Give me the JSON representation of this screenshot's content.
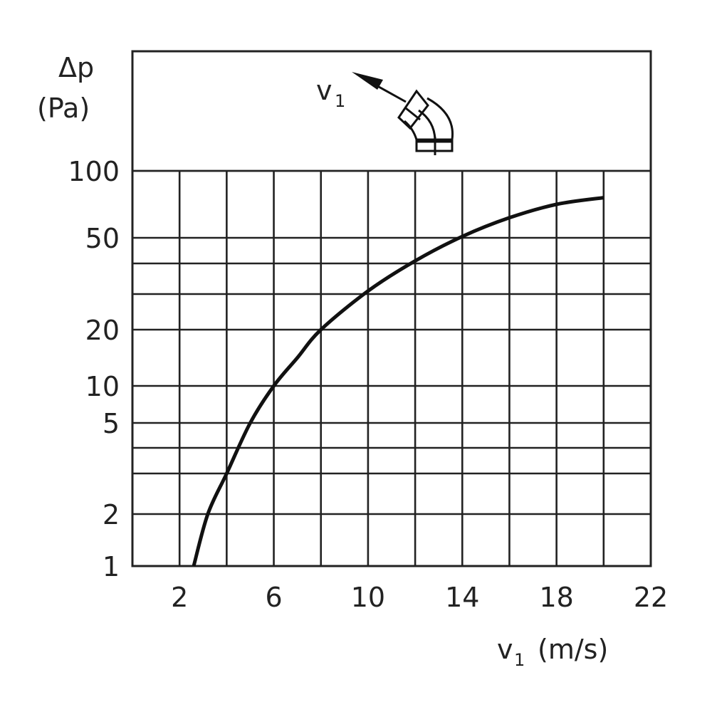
{
  "chart_data": {
    "type": "line",
    "ylabel_line1": "Δp",
    "ylabel_line2": "(Pa)",
    "xlabel_main": "v",
    "xlabel_sub": "1",
    "xlabel_unit": "(m/s)",
    "icon_label_main": "v",
    "icon_label_sub": "1",
    "xlim": [
      0,
      22
    ],
    "x_gridlines": [
      2,
      4,
      6,
      8,
      10,
      12,
      14,
      16,
      18,
      20
    ],
    "x_ticks": [
      2,
      6,
      10,
      14,
      18,
      22
    ],
    "x_tick_labels": [
      "2",
      "6",
      "10",
      "14",
      "18",
      "22"
    ],
    "y_scale_note_values": [
      1,
      2,
      3,
      4,
      5,
      10,
      20,
      30,
      40,
      50,
      100
    ],
    "y_gridlines": [
      1,
      2,
      3,
      4,
      5,
      10,
      20,
      30,
      40,
      50,
      100
    ],
    "y_ticks": [
      1,
      2,
      5,
      10,
      20,
      50,
      100
    ],
    "y_tick_labels": [
      "1",
      "2",
      "5",
      "10",
      "20",
      "50",
      "100"
    ],
    "ylim": [
      1,
      100
    ],
    "grid": true,
    "series": [
      {
        "x": [
          2.6,
          3.2,
          4,
          5,
          6,
          7,
          8,
          10,
          12,
          14,
          16,
          18,
          20
        ],
        "y": [
          1,
          2,
          3,
          5,
          10,
          15,
          20,
          31,
          41,
          51,
          65,
          75,
          80
        ],
        "color": "#111111"
      }
    ]
  }
}
